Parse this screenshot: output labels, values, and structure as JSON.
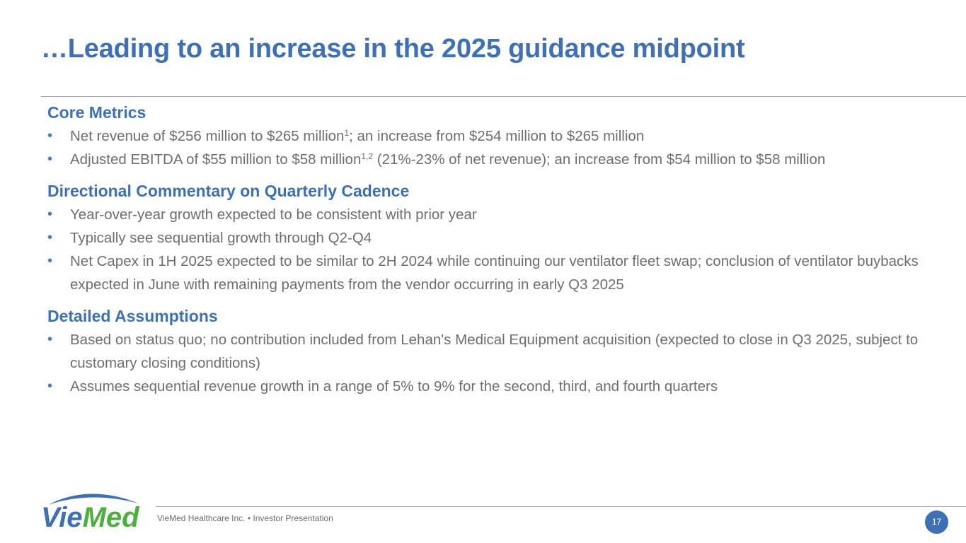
{
  "header": {
    "title": "…Leading to an increase in the 2025 guidance midpoint"
  },
  "sections": {
    "core": {
      "heading": "Core Metrics",
      "b1": {
        "pre": "Net revenue of $256 million to $265 million",
        "sup": "1",
        "post": "; an increase from $254 million to $265 million"
      },
      "b2": {
        "pre": "Adjusted EBITDA of $55 million to $58 million",
        "sup": "1,2",
        "post": " (21%-23% of net revenue); an increase from $54 million to $58 million"
      }
    },
    "cadence": {
      "heading": "Directional Commentary on Quarterly Cadence",
      "items": [
        "Year-over-year growth expected to be consistent with prior year",
        "Typically see sequential growth through Q2-Q4",
        "Net Capex in 1H 2025 expected to be similar to 2H 2024 while continuing our ventilator fleet swap; conclusion of ventilator buybacks expected in June with remaining payments from the vendor occurring in early Q3 2025"
      ]
    },
    "assumptions": {
      "heading": "Detailed Assumptions",
      "items": [
        "Based on status quo; no contribution included from Lehan's Medical Equipment acquisition (expected to close in Q3 2025, subject to customary closing conditions)",
        "Assumes sequential revenue growth in a range of 5% to 9% for the second, third, and fourth quarters"
      ]
    }
  },
  "bullet_glyph": "•",
  "footer": {
    "logo_text": "VieMed",
    "company_text": "VieMed Healthcare Inc.  •  Investor Presentation",
    "page_number": "17"
  },
  "colors": {
    "accent": "#3E70B5",
    "body_text": "#6E6E6E",
    "logo_green": "#4CAF3E"
  }
}
